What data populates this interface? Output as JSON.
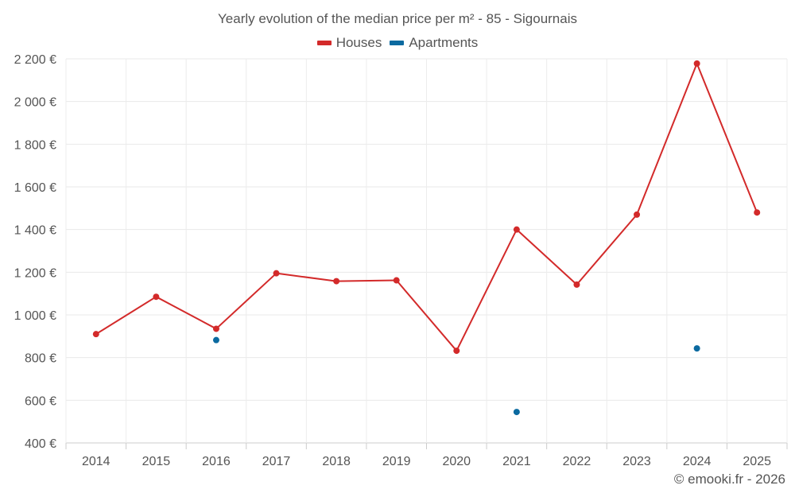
{
  "chart_data": {
    "type": "line",
    "title": "Yearly evolution of the median price per m² - 85 - Sigournais",
    "categories": [
      "2014",
      "2015",
      "2016",
      "2017",
      "2018",
      "2019",
      "2020",
      "2021",
      "2022",
      "2023",
      "2024",
      "2025"
    ],
    "y_tick_labels": [
      "400 €",
      "600 €",
      "800 €",
      "1 000 €",
      "1 200 €",
      "1 400 €",
      "1 600 €",
      "1 800 €",
      "2 000 €",
      "2 200 €"
    ],
    "ylim": [
      400,
      2200
    ],
    "grid": true,
    "legend_position": "top-center",
    "series": [
      {
        "name": "Houses",
        "color": "#d32a2a",
        "connected": true,
        "values": [
          910,
          1085,
          935,
          1195,
          1158,
          1162,
          832,
          1400,
          1142,
          1470,
          2178,
          1480
        ]
      },
      {
        "name": "Apartments",
        "color": "#0b6aa0",
        "connected": false,
        "values": [
          null,
          null,
          882,
          null,
          null,
          null,
          null,
          545,
          null,
          null,
          843,
          null
        ]
      }
    ]
  },
  "credit": "© emooki.fr - 2026"
}
